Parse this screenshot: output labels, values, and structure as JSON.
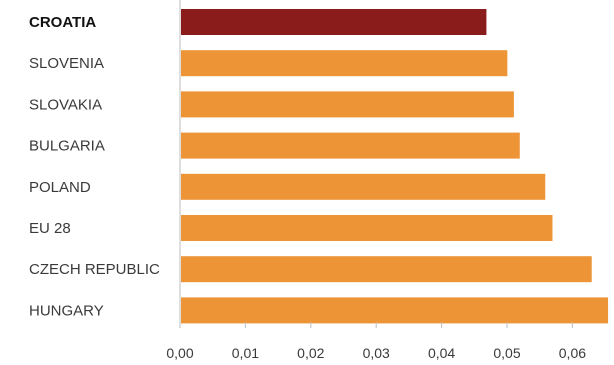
{
  "chart_data": {
    "type": "bar",
    "orientation": "horizontal",
    "title": "",
    "xlabel": "",
    "ylabel": "",
    "categories": [
      "CROATIA",
      "SLOVENIA",
      "SLOVAKIA",
      "BULGARIA",
      "POLAND",
      "EU 28",
      "CZECH REPUBLIC",
      "HUNGARY"
    ],
    "values": [
      0.0467,
      0.0499,
      0.0509,
      0.0518,
      0.0557,
      0.0568,
      0.0628,
      0.0653
    ],
    "highlight": "CROATIA",
    "xlim": [
      0,
      0.065
    ],
    "xticks": [
      "0,00",
      "0,01",
      "0,02",
      "0,03",
      "0,04",
      "0,05",
      "0,06"
    ],
    "grid": false,
    "colors": {
      "bar": "#EC9436",
      "highlight_bar": "#8B1C1C",
      "axis": "#bdbdbd"
    }
  }
}
